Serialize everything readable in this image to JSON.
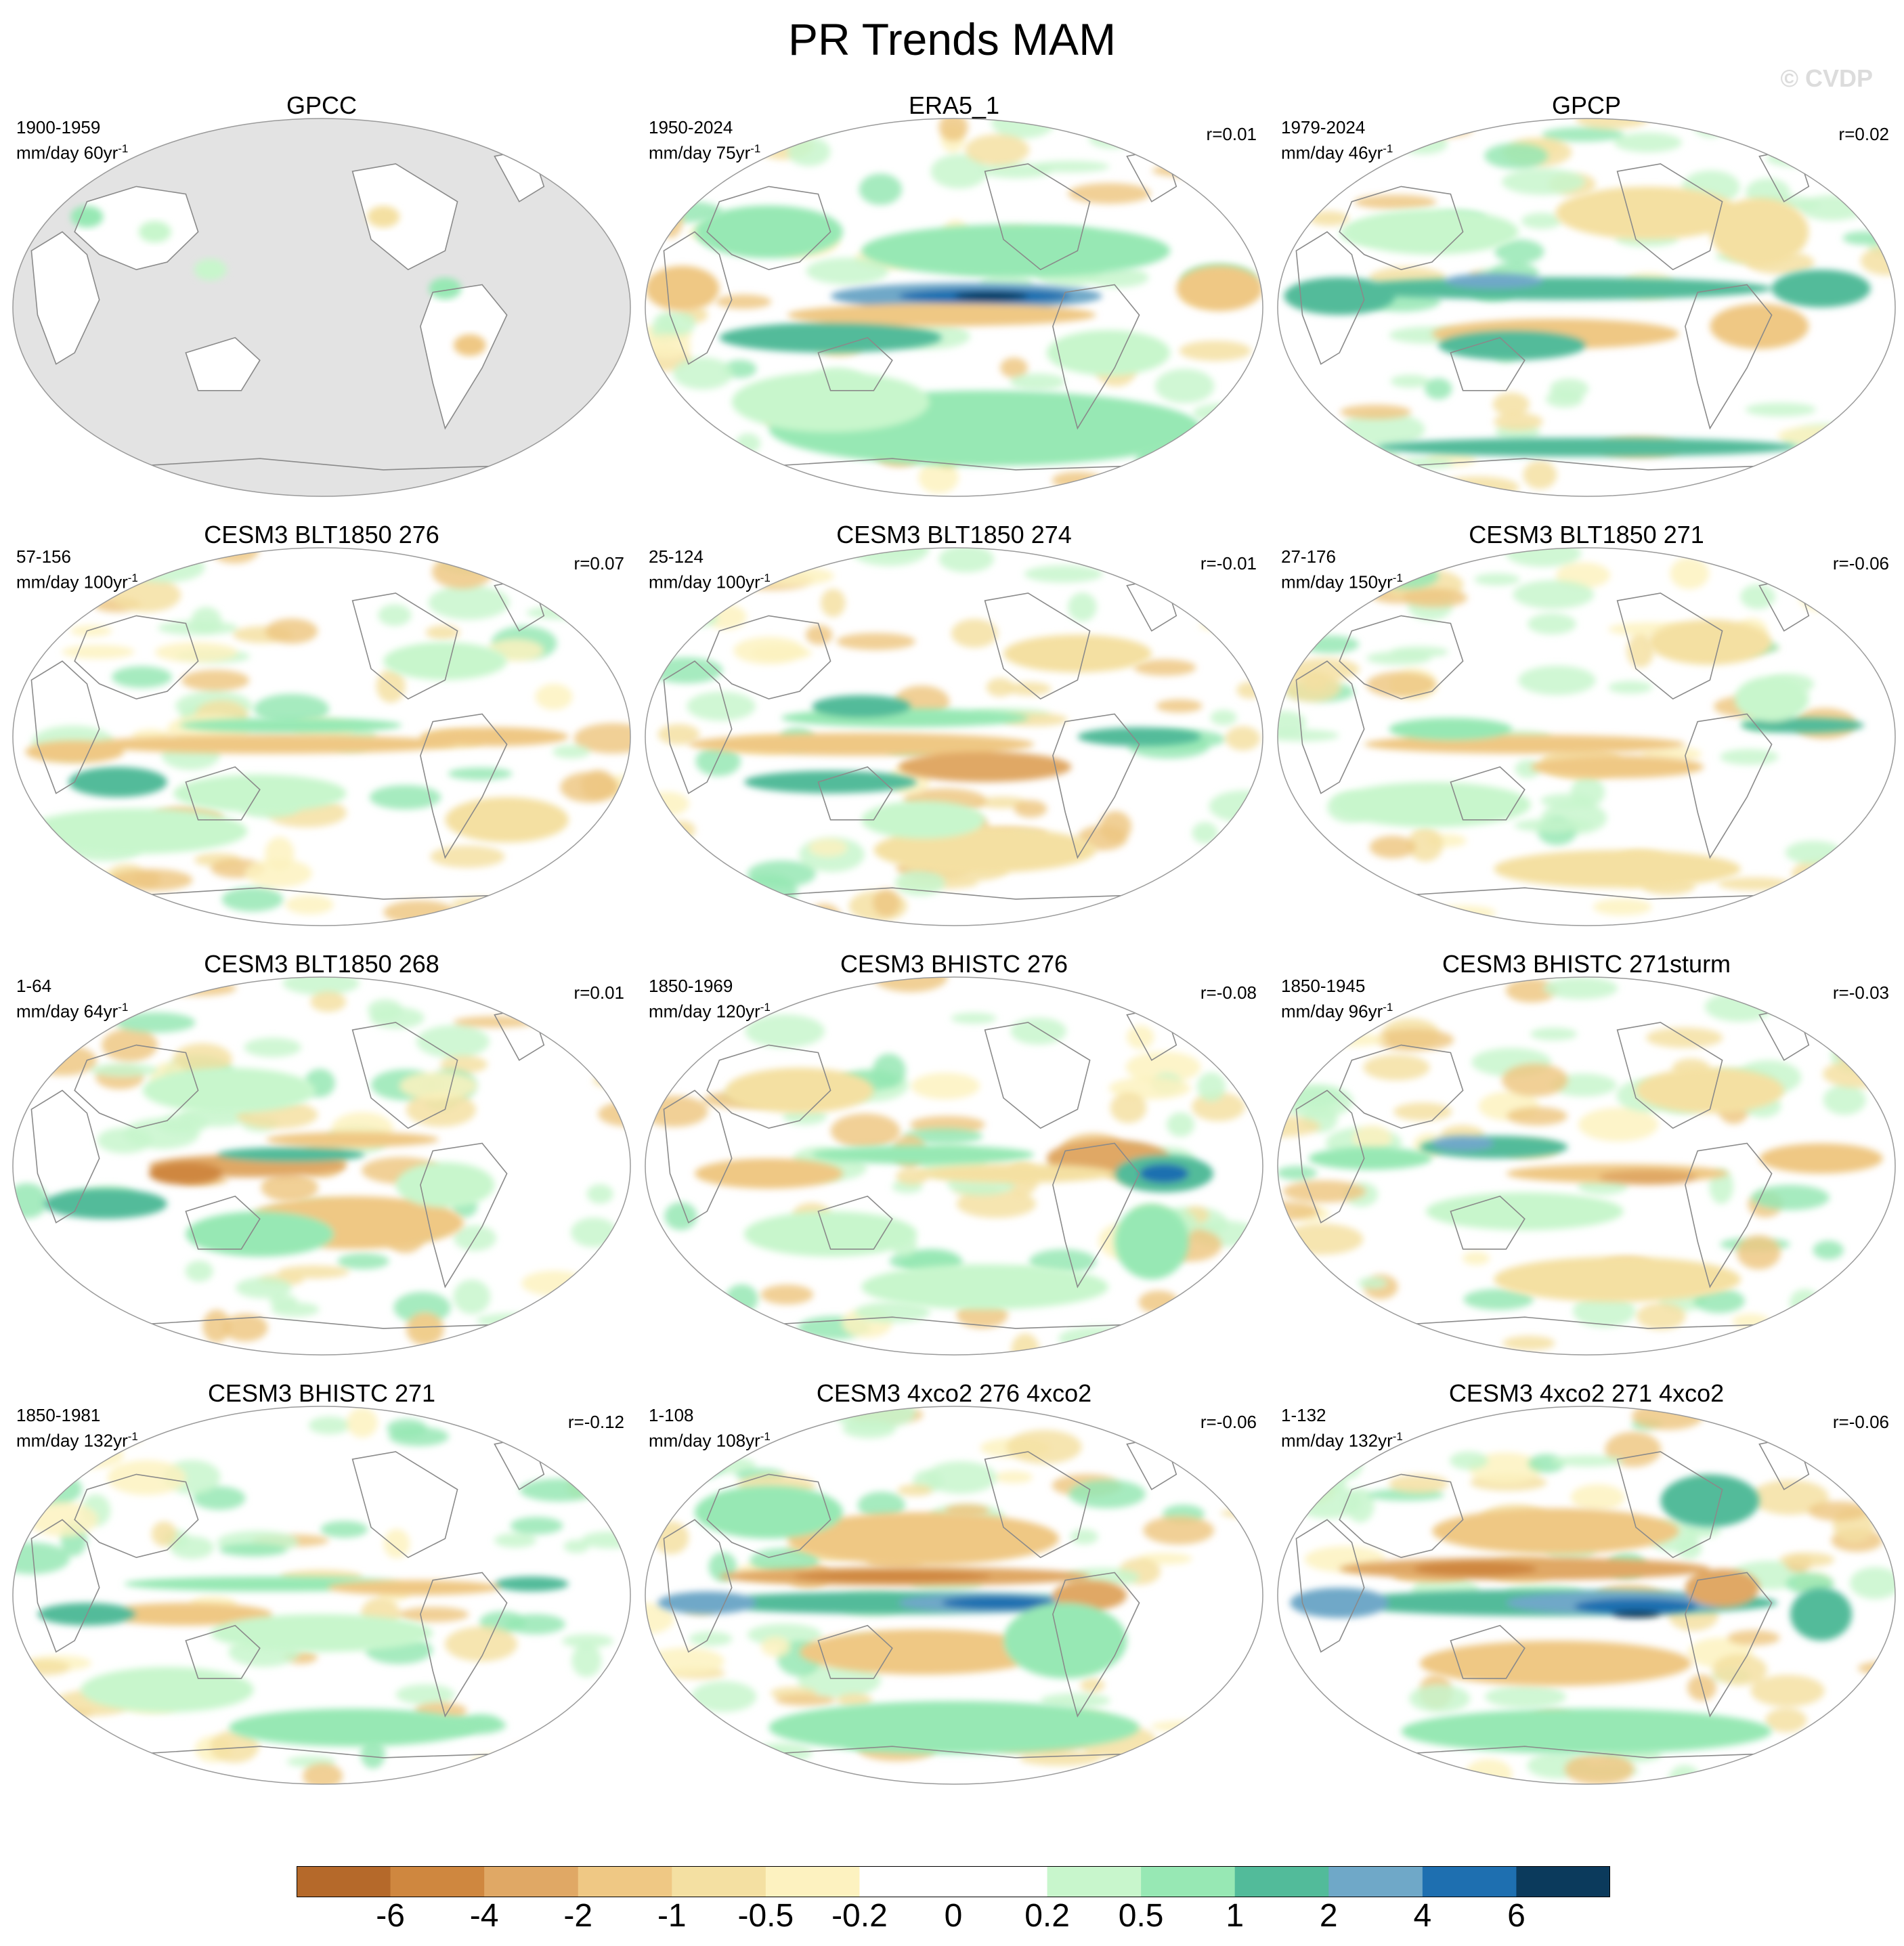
{
  "title": "PR Trends MAM",
  "watermark": "© CVDP",
  "panels": [
    {
      "title": "GPCC",
      "period": "1900-1959",
      "units_base": "mm/day 60yr",
      "units_exp": "-1",
      "r": "",
      "pattern": "gpcc"
    },
    {
      "title": "ERA5_1",
      "period": "1950-2024",
      "units_base": "mm/day 75yr",
      "units_exp": "-1",
      "r": "r=0.01",
      "pattern": "era5"
    },
    {
      "title": "GPCP",
      "period": "1979-2024",
      "units_base": "mm/day 46yr",
      "units_exp": "-1",
      "r": "r=0.02",
      "pattern": "gpcp"
    },
    {
      "title": "CESM3 BLT1850 276",
      "period": "57-156",
      "units_base": "mm/day 100yr",
      "units_exp": "-1",
      "r": "r=0.07",
      "pattern": "blt276"
    },
    {
      "title": "CESM3 BLT1850 274",
      "period": "25-124",
      "units_base": "mm/day 100yr",
      "units_exp": "-1",
      "r": "r=-0.01",
      "pattern": "blt274"
    },
    {
      "title": "CESM3 BLT1850 271",
      "period": "27-176",
      "units_base": "mm/day 150yr",
      "units_exp": "-1",
      "r": "r=-0.06",
      "pattern": "blt271"
    },
    {
      "title": "CESM3 BLT1850 268",
      "period": "1-64",
      "units_base": "mm/day 64yr",
      "units_exp": "-1",
      "r": "r=0.01",
      "pattern": "blt268"
    },
    {
      "title": "CESM3 BHISTC 276",
      "period": "1850-1969",
      "units_base": "mm/day 120yr",
      "units_exp": "-1",
      "r": "r=-0.08",
      "pattern": "bh276"
    },
    {
      "title": "CESM3 BHISTC 271sturm",
      "period": "1850-1945",
      "units_base": "mm/day 96yr",
      "units_exp": "-1",
      "r": "r=-0.03",
      "pattern": "bh271s"
    },
    {
      "title": "CESM3 BHISTC 271",
      "period": "1850-1981",
      "units_base": "mm/day 132yr",
      "units_exp": "-1",
      "r": "r=-0.12",
      "pattern": "bh271"
    },
    {
      "title": "CESM3 4xco2 276 4xco2",
      "period": "1-108",
      "units_base": "mm/day 108yr",
      "units_exp": "-1",
      "r": "r=-0.06",
      "pattern": "x276"
    },
    {
      "title": "CESM3 4xco2 271 4xco2",
      "period": "1-132",
      "units_base": "mm/day 132yr",
      "units_exp": "-1",
      "r": "r=-0.06",
      "pattern": "x271"
    }
  ],
  "colorbar": {
    "colors": [
      "#b5692a",
      "#cf873f",
      "#e0a865",
      "#efc884",
      "#f4e0a2",
      "#fdf2c0",
      "#ffffff",
      "#ffffff",
      "#c8f6cc",
      "#97e8b4",
      "#52bb9a",
      "#6fa8c8",
      "#1e6fb0",
      "#0b3a5c"
    ],
    "labels": [
      "-6",
      "-4",
      "-2",
      "-1",
      "-0.5",
      "-0.2",
      "0",
      "0.2",
      "0.5",
      "1",
      "2",
      "4",
      "6"
    ]
  },
  "map_legend": {
    "ocean_masked_color": "#e3e3e3",
    "coastline_color": "#8a8a8a"
  }
}
